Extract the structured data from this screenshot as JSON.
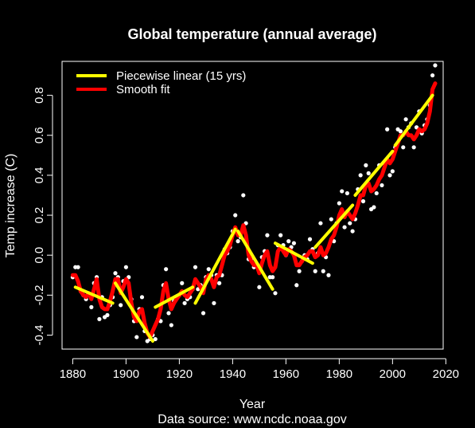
{
  "chart_data": {
    "type": "scatter",
    "title": "Global temperature (annual average)",
    "xlabel": "Year",
    "ylabel": "Temp increase (C)",
    "caption": "Data source: www.ncdc.noaa.gov",
    "xlim": [
      1876,
      2019
    ],
    "ylim": [
      -0.47,
      0.97
    ],
    "xticks": [
      1880,
      1900,
      1920,
      1940,
      1960,
      1980,
      2000,
      2020
    ],
    "yticks": [
      -0.4,
      -0.2,
      0.0,
      0.2,
      0.4,
      0.6,
      0.8
    ],
    "ytick_labels": [
      "-0.4",
      "-0.2",
      "0.0",
      "0.2",
      "0.4",
      "0.6",
      "0.8"
    ],
    "legend": {
      "placement": "top-left",
      "entries": [
        {
          "label": "Piecewise linear (15 yrs)",
          "color": "#ffff00"
        },
        {
          "label": "Smooth fit",
          "color": "#ff0000"
        }
      ]
    },
    "colors": {
      "points": "#ffffff",
      "piecewise": "#ffff00",
      "smooth": "#ff0000",
      "background": "#000000"
    },
    "points": {
      "x": [
        1880,
        1881,
        1882,
        1883,
        1884,
        1885,
        1886,
        1887,
        1888,
        1889,
        1890,
        1891,
        1892,
        1893,
        1894,
        1895,
        1896,
        1897,
        1898,
        1899,
        1900,
        1901,
        1902,
        1903,
        1904,
        1905,
        1906,
        1907,
        1908,
        1909,
        1910,
        1911,
        1912,
        1913,
        1914,
        1915,
        1916,
        1917,
        1918,
        1919,
        1920,
        1921,
        1922,
        1923,
        1924,
        1925,
        1926,
        1927,
        1928,
        1929,
        1930,
        1931,
        1932,
        1933,
        1934,
        1935,
        1936,
        1937,
        1938,
        1939,
        1940,
        1941,
        1942,
        1943,
        1944,
        1945,
        1946,
        1947,
        1948,
        1949,
        1950,
        1951,
        1952,
        1953,
        1954,
        1955,
        1956,
        1957,
        1958,
        1959,
        1960,
        1961,
        1962,
        1963,
        1964,
        1965,
        1966,
        1967,
        1968,
        1969,
        1970,
        1971,
        1972,
        1973,
        1974,
        1975,
        1976,
        1977,
        1978,
        1979,
        1980,
        1981,
        1982,
        1983,
        1984,
        1985,
        1986,
        1987,
        1988,
        1989,
        1990,
        1991,
        1992,
        1993,
        1994,
        1995,
        1996,
        1997,
        1998,
        1999,
        2000,
        2001,
        2002,
        2003,
        2004,
        2005,
        2006,
        2007,
        2008,
        2009,
        2010,
        2011,
        2012,
        2013,
        2014,
        2015,
        2016
      ],
      "y": [
        -0.11,
        -0.06,
        -0.06,
        -0.18,
        -0.2,
        -0.22,
        -0.2,
        -0.26,
        -0.14,
        -0.11,
        -0.32,
        -0.21,
        -0.31,
        -0.3,
        -0.25,
        -0.21,
        -0.09,
        -0.11,
        -0.25,
        -0.13,
        -0.06,
        -0.11,
        -0.22,
        -0.33,
        -0.41,
        -0.27,
        -0.21,
        -0.38,
        -0.43,
        -0.42,
        -0.4,
        -0.42,
        -0.32,
        -0.33,
        -0.15,
        -0.07,
        -0.29,
        -0.35,
        -0.23,
        -0.21,
        -0.2,
        -0.14,
        -0.24,
        -0.22,
        -0.21,
        -0.17,
        -0.06,
        -0.17,
        -0.15,
        -0.29,
        -0.11,
        -0.07,
        -0.1,
        -0.24,
        -0.1,
        -0.14,
        -0.1,
        0.03,
        0.01,
        0.04,
        0.12,
        0.2,
        0.07,
        0.09,
        0.3,
        0.16,
        -0.02,
        -0.02,
        -0.06,
        -0.05,
        -0.16,
        -0.01,
        0.02,
        0.1,
        -0.11,
        -0.11,
        -0.19,
        0.05,
        0.1,
        0.05,
        0.0,
        0.07,
        0.04,
        0.06,
        -0.15,
        -0.08,
        -0.03,
        0.0,
        -0.02,
        0.08,
        0.03,
        -0.08,
        0.01,
        0.16,
        -0.08,
        -0.01,
        -0.1,
        0.18,
        0.07,
        0.16,
        0.26,
        0.32,
        0.14,
        0.31,
        0.16,
        0.12,
        0.18,
        0.33,
        0.4,
        0.27,
        0.45,
        0.41,
        0.23,
        0.24,
        0.31,
        0.45,
        0.35,
        0.46,
        0.63,
        0.4,
        0.42,
        0.54,
        0.63,
        0.62,
        0.54,
        0.68,
        0.64,
        0.66,
        0.54,
        0.64,
        0.72,
        0.61,
        0.65,
        0.68,
        0.75,
        0.9,
        0.95
      ]
    },
    "piecewise_linear": [
      {
        "x": [
          1881,
          1895
        ],
        "y": [
          -0.16,
          -0.24
        ]
      },
      {
        "x": [
          1896,
          1910
        ],
        "y": [
          -0.14,
          -0.43
        ]
      },
      {
        "x": [
          1911,
          1925
        ],
        "y": [
          -0.26,
          -0.16
        ]
      },
      {
        "x": [
          1926,
          1941
        ],
        "y": [
          -0.24,
          0.13
        ]
      },
      {
        "x": [
          1942,
          1955
        ],
        "y": [
          0.12,
          -0.17
        ]
      },
      {
        "x": [
          1956,
          1970
        ],
        "y": [
          0.06,
          -0.04
        ]
      },
      {
        "x": [
          1971,
          1985
        ],
        "y": [
          0.04,
          0.25
        ]
      },
      {
        "x": [
          1986,
          2000
        ],
        "y": [
          0.3,
          0.52
        ]
      },
      {
        "x": [
          2001,
          2015
        ],
        "y": [
          0.55,
          0.8
        ]
      }
    ],
    "smooth_fit": {
      "x": [
        1880,
        1881,
        1882,
        1883,
        1884,
        1885,
        1886,
        1887,
        1888,
        1889,
        1890,
        1891,
        1892,
        1893,
        1894,
        1895,
        1896,
        1897,
        1898,
        1899,
        1900,
        1901,
        1902,
        1903,
        1904,
        1905,
        1906,
        1907,
        1908,
        1909,
        1910,
        1911,
        1912,
        1913,
        1914,
        1915,
        1916,
        1917,
        1918,
        1919,
        1920,
        1921,
        1922,
        1923,
        1924,
        1925,
        1926,
        1927,
        1928,
        1929,
        1930,
        1931,
        1932,
        1933,
        1934,
        1935,
        1936,
        1937,
        1938,
        1939,
        1940,
        1941,
        1942,
        1943,
        1944,
        1945,
        1946,
        1947,
        1948,
        1949,
        1950,
        1951,
        1952,
        1953,
        1954,
        1955,
        1956,
        1957,
        1958,
        1959,
        1960,
        1961,
        1962,
        1963,
        1964,
        1965,
        1966,
        1967,
        1968,
        1969,
        1970,
        1971,
        1972,
        1973,
        1974,
        1975,
        1976,
        1977,
        1978,
        1979,
        1980,
        1981,
        1982,
        1983,
        1984,
        1985,
        1986,
        1987,
        1988,
        1989,
        1990,
        1991,
        1992,
        1993,
        1994,
        1995,
        1996,
        1997,
        1998,
        1999,
        2000,
        2001,
        2002,
        2003,
        2004,
        2005,
        2006,
        2007,
        2008,
        2009,
        2010,
        2011,
        2012,
        2013,
        2014,
        2015,
        2016
      ],
      "y": [
        -0.1,
        -0.1,
        -0.13,
        -0.18,
        -0.2,
        -0.21,
        -0.19,
        -0.22,
        -0.17,
        -0.12,
        -0.22,
        -0.26,
        -0.27,
        -0.27,
        -0.23,
        -0.18,
        -0.12,
        -0.12,
        -0.19,
        -0.16,
        -0.12,
        -0.14,
        -0.24,
        -0.31,
        -0.33,
        -0.28,
        -0.27,
        -0.34,
        -0.39,
        -0.41,
        -0.38,
        -0.35,
        -0.32,
        -0.27,
        -0.18,
        -0.14,
        -0.22,
        -0.27,
        -0.24,
        -0.22,
        -0.2,
        -0.18,
        -0.2,
        -0.21,
        -0.19,
        -0.17,
        -0.12,
        -0.14,
        -0.16,
        -0.19,
        -0.12,
        -0.1,
        -0.12,
        -0.16,
        -0.11,
        -0.1,
        -0.05,
        0.0,
        0.02,
        0.05,
        0.1,
        0.14,
        0.1,
        0.1,
        0.15,
        0.1,
        0.0,
        -0.03,
        -0.05,
        -0.05,
        -0.09,
        -0.04,
        0.0,
        0.02,
        -0.05,
        -0.08,
        -0.06,
        0.02,
        0.04,
        0.02,
        0.0,
        0.03,
        0.02,
        0.0,
        -0.05,
        -0.05,
        -0.03,
        -0.01,
        0.0,
        0.02,
        0.02,
        -0.01,
        0.0,
        0.04,
        0.0,
        0.01,
        0.04,
        0.08,
        0.1,
        0.14,
        0.2,
        0.23,
        0.19,
        0.22,
        0.2,
        0.18,
        0.21,
        0.25,
        0.3,
        0.3,
        0.35,
        0.36,
        0.32,
        0.33,
        0.35,
        0.38,
        0.4,
        0.44,
        0.48,
        0.46,
        0.48,
        0.52,
        0.56,
        0.6,
        0.6,
        0.62,
        0.6,
        0.6,
        0.58,
        0.6,
        0.63,
        0.62,
        0.63,
        0.66,
        0.72,
        0.83,
        0.86
      ]
    }
  }
}
